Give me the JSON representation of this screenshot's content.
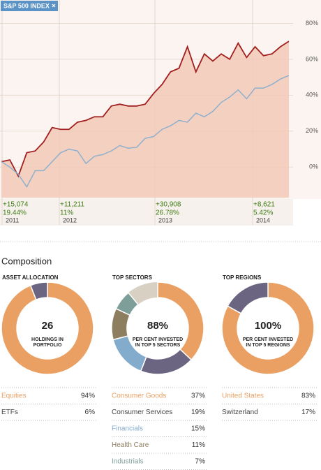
{
  "chart_data": [
    {
      "type": "line",
      "tag": "S&P 500 INDEX",
      "ylim": [
        -17,
        93
      ],
      "yticks": [
        {
          "value": 80,
          "label": "80%"
        },
        {
          "value": 60,
          "label": "60%"
        },
        {
          "value": 40,
          "label": "40%"
        },
        {
          "value": 20,
          "label": "20%"
        },
        {
          "value": 0,
          "label": "0%"
        }
      ],
      "grid": true,
      "series": [
        {
          "color": "#a21f1f",
          "fill": "#f2c9b8",
          "values": [
            3,
            4,
            -5,
            8,
            9,
            14,
            22,
            21,
            21,
            25,
            26,
            28,
            28,
            34,
            35,
            34,
            34,
            35,
            41,
            46,
            53,
            55,
            67,
            53,
            63,
            59,
            63,
            60,
            69,
            61,
            67,
            62,
            63,
            67,
            70
          ]
        },
        {
          "name": "S&P 500 INDEX",
          "color": "#8fb0cc",
          "values": [
            3,
            0,
            -4,
            -11,
            -2,
            -2,
            3,
            8,
            10,
            9,
            2,
            6,
            7,
            9,
            12,
            10.5,
            11,
            16,
            17,
            21,
            23,
            26,
            25,
            30,
            28,
            31,
            36,
            39,
            43,
            38,
            44,
            44,
            46,
            49,
            51
          ]
        }
      ],
      "annotations": [
        {
          "amount": "+15,074",
          "percent": "19.44%",
          "year": "2011"
        },
        {
          "amount": "+11,211",
          "percent": "11%",
          "year": "2012"
        },
        {
          "amount": "+30,908",
          "percent": "26.78%",
          "year": "2013"
        },
        {
          "amount": "+8,621",
          "percent": "5.42%",
          "year": "2014"
        }
      ]
    },
    {
      "type": "pie",
      "section": "Composition",
      "title": "ASSET ALLOCATION",
      "center_text": [
        "26",
        "HOLDINGS IN",
        "PORTFOLIO"
      ],
      "categories": [
        "Equities",
        "ETFs"
      ],
      "values": [
        94,
        6
      ],
      "value_labels": [
        "94%",
        "6%"
      ],
      "colors": [
        "#e9a062",
        "#6c6582"
      ]
    },
    {
      "type": "pie",
      "title": "TOP SECTORS",
      "center_text": [
        "88%",
        "PER CENT INVESTED",
        "IN TOP 5 SECTORS"
      ],
      "categories": [
        "Consumer Goods",
        "Consumer Services",
        "Financials",
        "Health Care",
        "Industrials"
      ],
      "values": [
        37,
        19,
        15,
        11,
        7
      ],
      "value_labels": [
        "37%",
        "19%",
        "15%",
        "11%",
        "7%"
      ],
      "colors": [
        "#e9a062",
        "#6c6582",
        "#83abcc",
        "#8e7e60",
        "#7e9e99"
      ],
      "rest_color": "#d9d0c4"
    },
    {
      "type": "pie",
      "title": "TOP REGIONS",
      "center_text": [
        "100%",
        "PER CENT INVESTED",
        "IN TOP 5 REGIONS"
      ],
      "categories": [
        "United States",
        "Switzerland"
      ],
      "values": [
        83,
        17
      ],
      "value_labels": [
        "83%",
        "17%"
      ],
      "colors": [
        "#e9a062",
        "#6c6582"
      ]
    }
  ]
}
